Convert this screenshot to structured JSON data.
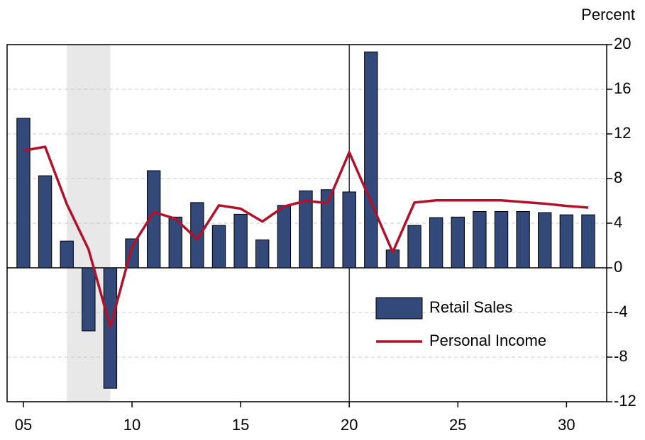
{
  "chart_data": {
    "type": "bar_line",
    "y_axis_label": "Percent",
    "x": [
      5,
      6,
      7,
      8,
      9,
      10,
      11,
      12,
      13,
      14,
      15,
      16,
      17,
      18,
      19,
      20,
      21,
      22,
      23,
      24,
      25,
      26,
      27,
      28,
      29,
      30,
      31
    ],
    "series": [
      {
        "name": "Retail Sales",
        "type": "bar",
        "color": "#33497a",
        "values": [
          13.4,
          8.25,
          2.4,
          -5.65,
          -10.8,
          2.6,
          8.7,
          4.55,
          5.85,
          3.8,
          4.8,
          2.5,
          5.6,
          6.9,
          7.0,
          6.8,
          19.35,
          1.6,
          3.8,
          4.5,
          4.55,
          5.05,
          5.05,
          5.05,
          4.95,
          4.75,
          4.75
        ]
      },
      {
        "name": "Personal Income",
        "type": "line",
        "color": "#b0122b",
        "values": [
          10.5,
          10.85,
          5.7,
          1.65,
          -5.3,
          1.9,
          5.0,
          4.4,
          2.55,
          5.6,
          5.3,
          4.15,
          5.5,
          6.0,
          5.8,
          10.35,
          5.9,
          1.4,
          5.85,
          6.05,
          6.05,
          6.05,
          6.05,
          5.9,
          5.75,
          5.55,
          5.4
        ]
      }
    ],
    "xlim": [
      4.25,
      31.85
    ],
    "xticks": [
      {
        "value": 5,
        "label": "05"
      },
      10,
      15,
      20,
      25,
      30
    ],
    "ylim": [
      -12,
      20
    ],
    "yticks": [
      -12,
      -8,
      -4,
      0,
      4,
      8,
      12,
      16,
      20
    ],
    "y_axis_side": "right",
    "grid": true,
    "shaded_regions": [
      [
        7,
        9
      ]
    ],
    "vlines": [
      20
    ],
    "legend": "lower right"
  }
}
